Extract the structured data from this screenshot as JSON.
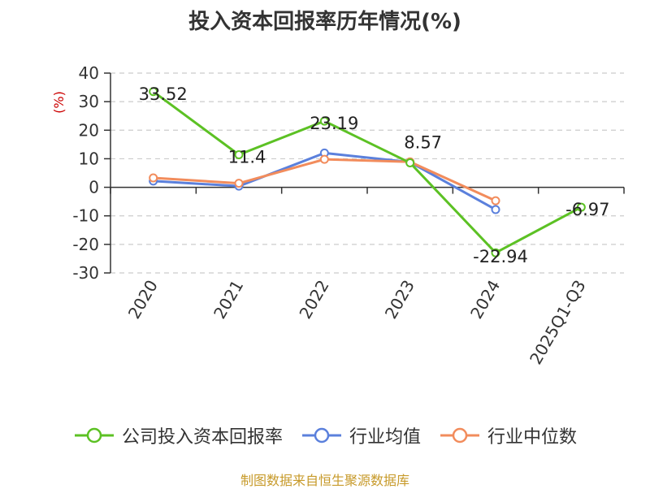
{
  "title": "投入资本回报率历年情况(%)",
  "source": "制图数据来自恒生聚源数据库",
  "colors": {
    "series_0": "#5cc124",
    "series_1": "#5b80dc",
    "series_2": "#f28c5c",
    "grid": "#cccccc",
    "axis": "#333333"
  },
  "chart_data": {
    "type": "line",
    "title": "投入资本回报率历年情况(%)",
    "xlabel": "",
    "ylabel": "(%)",
    "ylim": [
      -30,
      40
    ],
    "yticks": [
      40,
      30,
      20,
      10,
      0,
      -10,
      -20,
      -30
    ],
    "categories": [
      "2020",
      "2021",
      "2022",
      "2023",
      "2024",
      "2025Q1-Q3"
    ],
    "grid": true,
    "legend_position": "bottom",
    "series": [
      {
        "name": "公司投入资本回报率",
        "values": [
          33.52,
          11.4,
          23.19,
          8.57,
          -22.94,
          -6.97
        ],
        "labels": [
          "33.52",
          "11.4",
          "23.19",
          "8.57",
          "-22.94",
          "-6.97"
        ]
      },
      {
        "name": "行业均值",
        "values": [
          2.2,
          0.4,
          12.0,
          8.8,
          -7.8,
          null
        ]
      },
      {
        "name": "行业中位数",
        "values": [
          3.3,
          1.4,
          9.8,
          8.9,
          -4.7,
          null
        ]
      }
    ]
  }
}
